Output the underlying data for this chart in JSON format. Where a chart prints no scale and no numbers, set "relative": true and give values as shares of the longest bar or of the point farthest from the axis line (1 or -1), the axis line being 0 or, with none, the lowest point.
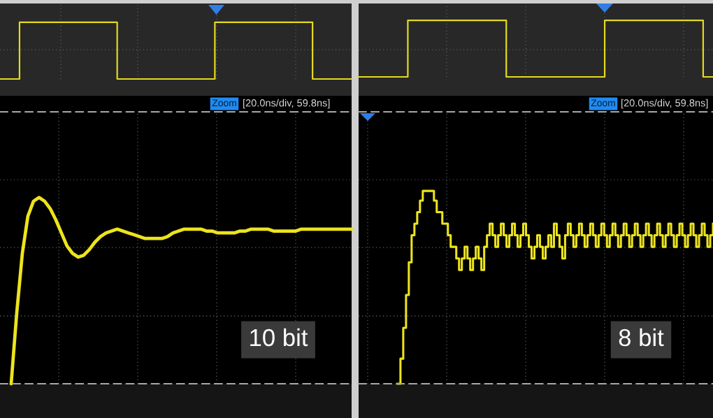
{
  "chart_data": [
    {
      "type": "step",
      "relative": true,
      "grid": true,
      "color": "#e2da1e",
      "categories": [
        null,
        null,
        null,
        null,
        null,
        null,
        null,
        null,
        null,
        null,
        null,
        null,
        null,
        null,
        null,
        null,
        null,
        null,
        null,
        null,
        null,
        null,
        null,
        null,
        null,
        null,
        null,
        null,
        null,
        null,
        null,
        null,
        null,
        null,
        null,
        null,
        null
      ],
      "values": [
        0,
        0,
        1,
        1,
        1,
        1,
        1,
        1,
        1,
        1,
        1,
        1,
        0,
        0,
        0,
        0,
        0,
        0,
        0,
        0,
        0,
        0,
        1,
        1,
        1,
        1,
        1,
        1,
        1,
        1,
        1,
        1,
        0,
        0,
        0,
        0,
        0
      ]
    },
    {
      "type": "step",
      "relative": true,
      "grid": true,
      "color": "#e2da1e",
      "categories": [
        null,
        null,
        null,
        null,
        null,
        null,
        null,
        null,
        null,
        null,
        null,
        null,
        null,
        null,
        null,
        null,
        null,
        null,
        null,
        null,
        null,
        null,
        null,
        null,
        null,
        null,
        null,
        null,
        null,
        null,
        null,
        null,
        null,
        null,
        null,
        null,
        null
      ],
      "values": [
        0,
        0,
        0,
        0,
        0,
        1,
        1,
        1,
        1,
        1,
        1,
        1,
        1,
        1,
        1,
        0,
        0,
        0,
        0,
        0,
        0,
        0,
        0,
        0,
        0,
        1,
        1,
        1,
        1,
        1,
        1,
        1,
        1,
        1,
        1,
        0,
        0
      ]
    },
    {
      "type": "line",
      "relative": true,
      "grid": true,
      "color": "#ece41c",
      "annotations": [
        "Zoom",
        "[20.0ns/div, 59.8ns]",
        "10 bit"
      ],
      "categories": [
        null,
        null,
        null,
        null,
        null,
        null,
        null,
        null,
        null,
        null,
        null,
        null,
        null,
        null,
        null,
        null,
        null,
        null,
        null,
        null,
        null,
        null,
        null,
        null,
        null,
        null,
        null,
        null,
        null,
        null,
        null,
        null,
        null,
        null,
        null,
        null,
        null,
        null,
        null,
        null,
        null,
        null,
        null,
        null,
        null,
        null,
        null,
        null,
        null,
        null,
        null,
        null,
        null,
        null,
        null,
        null,
        null,
        null,
        null,
        null,
        null,
        null,
        null,
        null
      ],
      "values": [
        null,
        null,
        0,
        0.38,
        0.7,
        0.9,
        0.98,
        1,
        0.98,
        0.94,
        0.88,
        0.81,
        0.74,
        0.7,
        0.68,
        0.69,
        0.72,
        0.76,
        0.79,
        0.81,
        0.82,
        0.83,
        0.82,
        0.81,
        0.8,
        0.79,
        0.78,
        0.78,
        0.78,
        0.78,
        0.79,
        0.81,
        0.82,
        0.83,
        0.83,
        0.83,
        0.83,
        0.82,
        0.82,
        0.81,
        0.81,
        0.81,
        0.81,
        0.82,
        0.82,
        0.83,
        0.83,
        0.83,
        0.83,
        0.82,
        0.82,
        0.82,
        0.82,
        0.82,
        0.83,
        0.83,
        0.83,
        0.83,
        0.83,
        0.83,
        0.83,
        0.83,
        0.83,
        0.83
      ]
    },
    {
      "type": "step",
      "relative": true,
      "grid": true,
      "color": "#ece41c",
      "annotations": [
        "Zoom",
        "[20.0ns/div, 59.8ns]",
        "8 bit"
      ],
      "categories": [
        null,
        null,
        null,
        null,
        null,
        null,
        null,
        null,
        null,
        null,
        null,
        null,
        null,
        null,
        null,
        null,
        null,
        null,
        null,
        null,
        null,
        null,
        null,
        null,
        null,
        null,
        null,
        null,
        null,
        null,
        null,
        null,
        null,
        null,
        null,
        null,
        null,
        null,
        null,
        null,
        null,
        null,
        null,
        null,
        null,
        null,
        null,
        null,
        null,
        null,
        null,
        null,
        null,
        null,
        null,
        null,
        null,
        null,
        null,
        null,
        null,
        null,
        null,
        null,
        null,
        null,
        null,
        null,
        null,
        null,
        null,
        null,
        null,
        null,
        null,
        null,
        null,
        null,
        null,
        null,
        null,
        null,
        null,
        null,
        null,
        null,
        null,
        null,
        null,
        null,
        null,
        null,
        null,
        null,
        null,
        null,
        null,
        null,
        null,
        null,
        null,
        null,
        null,
        null,
        null,
        null,
        null,
        null,
        null,
        null,
        null,
        null,
        null,
        null,
        null,
        null,
        null,
        null,
        null,
        null,
        null,
        null,
        null,
        null,
        null,
        null,
        null,
        null
      ],
      "values": [
        null,
        null,
        null,
        null,
        null,
        null,
        null,
        null,
        null,
        null,
        null,
        null,
        null,
        null,
        0,
        0.13,
        0.29,
        0.46,
        0.63,
        0.77,
        0.83,
        0.89,
        0.95,
        1,
        1,
        1,
        1,
        0.95,
        0.89,
        0.89,
        0.83,
        0.83,
        0.77,
        0.71,
        0.71,
        0.65,
        0.59,
        0.65,
        0.71,
        0.65,
        0.59,
        0.65,
        0.71,
        0.65,
        0.59,
        0.71,
        0.77,
        0.83,
        0.77,
        0.71,
        0.77,
        0.83,
        0.77,
        0.71,
        0.77,
        0.83,
        0.77,
        0.71,
        0.77,
        0.83,
        0.77,
        0.71,
        0.65,
        0.71,
        0.77,
        0.71,
        0.65,
        0.71,
        0.77,
        0.71,
        0.83,
        0.77,
        0.71,
        0.65,
        0.77,
        0.83,
        0.77,
        0.71,
        0.77,
        0.83,
        0.77,
        0.71,
        0.77,
        0.83,
        0.77,
        0.71,
        0.77,
        0.83,
        0.77,
        0.71,
        0.77,
        0.83,
        0.77,
        0.71,
        0.77,
        0.83,
        0.77,
        0.71,
        0.77,
        0.83,
        0.77,
        0.71,
        0.77,
        0.83,
        0.77,
        0.71,
        0.77,
        0.83,
        0.77,
        0.71,
        0.77,
        0.83,
        0.77,
        0.71,
        0.77,
        0.83,
        0.77,
        0.71,
        0.77,
        0.83,
        0.77,
        0.71,
        0.77,
        0.83,
        0.77,
        0.71,
        0.77,
        0.83
      ]
    }
  ]
}
